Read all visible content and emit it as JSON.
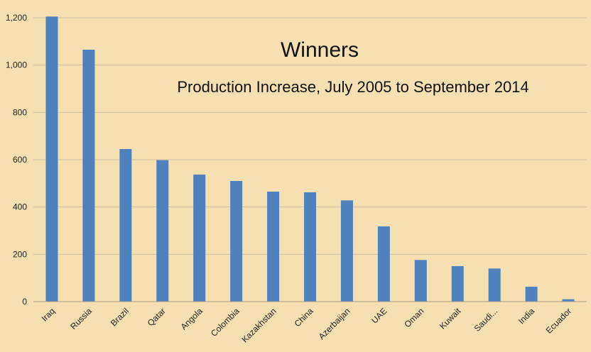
{
  "chart_data": {
    "type": "bar",
    "title": "Winners",
    "subtitle": "Production Increase, July 2005 to September 2014",
    "xlabel": "",
    "ylabel": "",
    "categories": [
      "Iraq",
      "Russia",
      "Brazil",
      "Qatar",
      "Angola",
      "Colombia",
      "Kazakhstan",
      "China",
      "Azerbaijan",
      "UAE",
      "Oman",
      "Kuwait",
      "Saudi...",
      "India",
      "Ecuador"
    ],
    "values": [
      1205,
      1065,
      645,
      598,
      537,
      510,
      465,
      462,
      428,
      318,
      176,
      150,
      140,
      63,
      10
    ],
    "ylim": [
      0,
      1200
    ],
    "yticks": [
      0,
      200,
      400,
      600,
      800,
      1000,
      1200
    ],
    "ytick_labels": [
      "0",
      "200",
      "400",
      "600",
      "800",
      "1,000",
      "1,200"
    ],
    "grid": true,
    "legend": "none",
    "bar_color": "#4f81bd",
    "background_color": "#f6dfb0"
  }
}
